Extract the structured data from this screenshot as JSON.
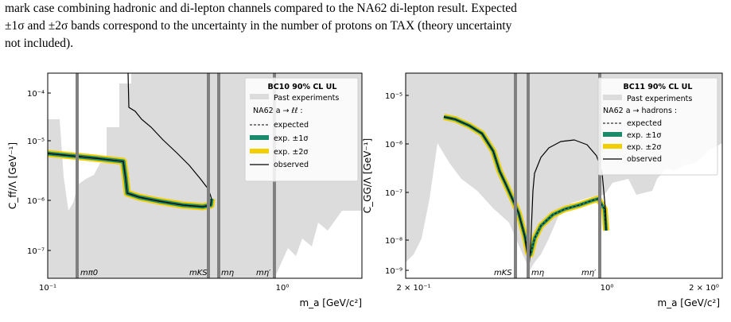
{
  "caption": {
    "line1": "mark case combining hadronic and di-lepton channels compared to the NA62 di-lepton result. Expected",
    "line2": "±1σ and ±2σ bands correspond to the uncertainty in the number of protons on TAX (theory uncertainty",
    "line3": "not included)."
  },
  "colors": {
    "past": "#dcdcdc",
    "band1": "#1a8a6a",
    "band2": "#f2cd00",
    "resonance": "#808080"
  },
  "chart_data": [
    {
      "type": "line",
      "scale": "log-log",
      "xlim": [
        0.1,
        2.0
      ],
      "ylim": [
        2e-08,
        0.0002
      ],
      "xlabel": "m_a [GeV/c²]",
      "ylabel": "C_ff/Λ [GeV⁻¹]",
      "ytick_labels": [
        "10⁻⁴",
        "10⁻⁵",
        "10⁻⁶",
        "10⁻⁷"
      ],
      "xtick_labels": [
        "10⁻¹",
        "10⁰"
      ],
      "legend": {
        "placement": "top-right",
        "title": "BC10 90% CL UL",
        "past": "Past experiments",
        "group": "NA62 a → ℓℓ :",
        "expected": "expected",
        "one_sigma": "exp. ±1σ",
        "two_sigma": "exp. ±2σ",
        "observed": "observed"
      },
      "resonances": [
        {
          "label": "mπ0",
          "x": 0.135
        },
        {
          "label": "mKS",
          "x": 0.4976
        },
        {
          "label": "mη",
          "x": 0.5479
        },
        {
          "label": "mη′",
          "x": 0.9578
        }
      ],
      "observed": [
        [
          0.1,
          1.2e-05
        ],
        [
          0.15,
          1.08e-05
        ],
        [
          0.2,
          9.6e-06
        ],
        [
          0.21,
          9.3e-06
        ],
        [
          0.212,
          2.4e-06
        ],
        [
          0.22,
          1.6e-06
        ],
        [
          0.25,
          1.45e-06
        ],
        [
          0.3,
          1.3e-06
        ],
        [
          0.35,
          1.2e-06
        ],
        [
          0.4,
          1.15e-06
        ],
        [
          0.44,
          1.12e-06
        ],
        [
          0.46,
          1.3e-06
        ],
        [
          0.47,
          2e-06
        ],
        [
          0.465,
          3.2e-06
        ],
        [
          0.45,
          4.5e-06
        ],
        [
          0.4,
          6.5e-06
        ],
        [
          0.35,
          9e-06
        ],
        [
          0.3,
          1.2e-05
        ],
        [
          0.26,
          1.7e-05
        ],
        [
          0.23,
          2.6e-05
        ],
        [
          0.22,
          3.2e-05
        ],
        [
          0.215,
          4e-05
        ],
        [
          0.215,
          0.0002
        ]
      ],
      "expected": [
        [
          0.1,
          1.2e-05
        ],
        [
          0.15,
          1.08e-05
        ],
        [
          0.2,
          9.6e-06
        ],
        [
          0.21,
          9.3e-06
        ],
        [
          0.212,
          2.4e-06
        ],
        [
          0.22,
          1.6e-06
        ],
        [
          0.25,
          1.45e-06
        ],
        [
          0.3,
          1.3e-06
        ],
        [
          0.35,
          1.2e-06
        ],
        [
          0.4,
          1.15e-06
        ],
        [
          0.44,
          1.12e-06
        ],
        [
          0.46,
          1.3e-06
        ],
        [
          0.47,
          2e-06
        ]
      ]
    },
    {
      "type": "line",
      "scale": "log-log",
      "xlim": [
        0.2,
        2.0
      ],
      "ylim": [
        6e-10,
        3e-05
      ],
      "xlabel": "m_a [GeV/c²]",
      "ylabel": "C_GG/Λ [GeV⁻¹]",
      "ytick_labels": [
        "10⁻⁵",
        "10⁻⁶",
        "10⁻⁷",
        "10⁻⁸",
        "10⁻⁹"
      ],
      "xtick_labels": [
        "2 × 10⁻¹",
        "10⁰",
        "2 × 10⁰"
      ],
      "legend": {
        "placement": "top-right",
        "title": "BC11 90% CL UL",
        "past": "Past experiments",
        "group": "NA62 a → hadrons :",
        "expected": "expected",
        "one_sigma": "exp. ±1σ",
        "two_sigma": "exp. ±2σ",
        "observed": "observed"
      },
      "resonances": [
        {
          "label": "mKS",
          "x": 0.4976
        },
        {
          "label": "mη",
          "x": 0.5479
        },
        {
          "label": "mη′",
          "x": 0.9578
        }
      ],
      "expected": [
        [
          0.28,
          1.05e-05
        ],
        [
          0.3,
          9e-06
        ],
        [
          0.33,
          7e-06
        ],
        [
          0.36,
          4.5e-06
        ],
        [
          0.38,
          2.5e-06
        ],
        [
          0.4,
          9e-07
        ],
        [
          0.42,
          3.5e-07
        ],
        [
          0.45,
          2e-07
        ],
        [
          0.48,
          1.1e-07
        ],
        [
          0.52,
          4e-08
        ],
        [
          0.55,
          1.5e-08
        ],
        [
          0.57,
          2.5e-08
        ],
        [
          0.6,
          4e-08
        ],
        [
          0.65,
          4.8e-08
        ],
        [
          0.7,
          5.3e-08
        ],
        [
          0.8,
          6.5e-08
        ],
        [
          0.85,
          7.8e-08
        ],
        [
          0.9,
          5e-08
        ],
        [
          0.93,
          1.5e-08
        ]
      ],
      "observed": [
        [
          0.28,
          1.05e-05
        ],
        [
          0.3,
          9e-06
        ],
        [
          0.33,
          7e-06
        ],
        [
          0.36,
          4.5e-06
        ],
        [
          0.38,
          2.5e-06
        ],
        [
          0.4,
          9e-07
        ],
        [
          0.42,
          3.5e-07
        ],
        [
          0.45,
          2e-07
        ],
        [
          0.48,
          1.1e-07
        ],
        [
          0.52,
          4e-08
        ],
        [
          0.55,
          1.2e-08
        ],
        [
          0.56,
          2.5e-09
        ],
        [
          0.57,
          4e-08
        ],
        [
          0.58,
          1.2e-06
        ],
        [
          0.6,
          1.7e-06
        ],
        [
          0.65,
          2.1e-06
        ],
        [
          0.7,
          2.2e-06
        ],
        [
          0.78,
          2e-06
        ],
        [
          0.85,
          1e-06
        ],
        [
          0.9,
          1.5e-07
        ],
        [
          0.93,
          2e-08
        ]
      ]
    }
  ]
}
